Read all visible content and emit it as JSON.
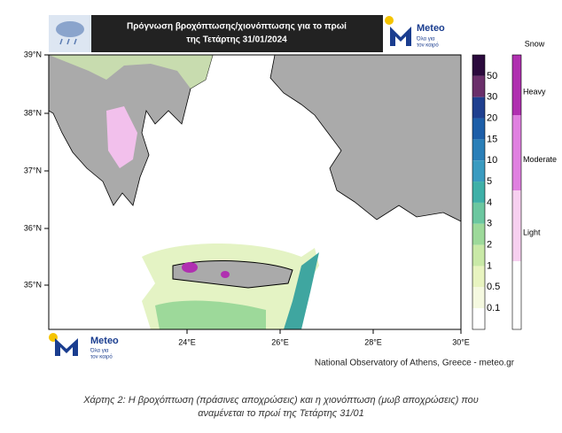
{
  "header": {
    "title_lines": [
      "Πρόγνωση βροχόπτωσης/χιονόπτωσης για το πρωί",
      "της Τετάρτης 31/01/2024"
    ],
    "logo_name": "Meteo",
    "logo_tagline_lines": [
      "Όλα για",
      "τον καιρό"
    ]
  },
  "map": {
    "lat_labels": [
      "39°N",
      "38°N",
      "37°N",
      "36°N",
      "35°N"
    ],
    "lon_labels": [
      "24°E",
      "26°E",
      "28°E",
      "30°E"
    ]
  },
  "rain_legend": {
    "labels": [
      "50",
      "30",
      "20",
      "15",
      "10",
      "5",
      "4",
      "3",
      "2",
      "1",
      "0.5",
      "0.1"
    ]
  },
  "snow_legend": {
    "title": "Snow",
    "labels": [
      "Heavy",
      "Moderate",
      "Light"
    ]
  },
  "footer": {
    "logo_name": "Meteo",
    "logo_tagline_lines": [
      "Όλα για",
      "τον καιρό"
    ],
    "credit": "National Observatory of Athens, Greece - meteo.gr"
  },
  "caption": {
    "lines": [
      "Χάρτης 2: Η βροχόπτωση (πράσινες αποχρώσεις) και η χιονόπτωση (μωβ αποχρώσεις) που",
      "αναμένεται το πρωί της Τετάρτης 31/01"
    ]
  }
}
